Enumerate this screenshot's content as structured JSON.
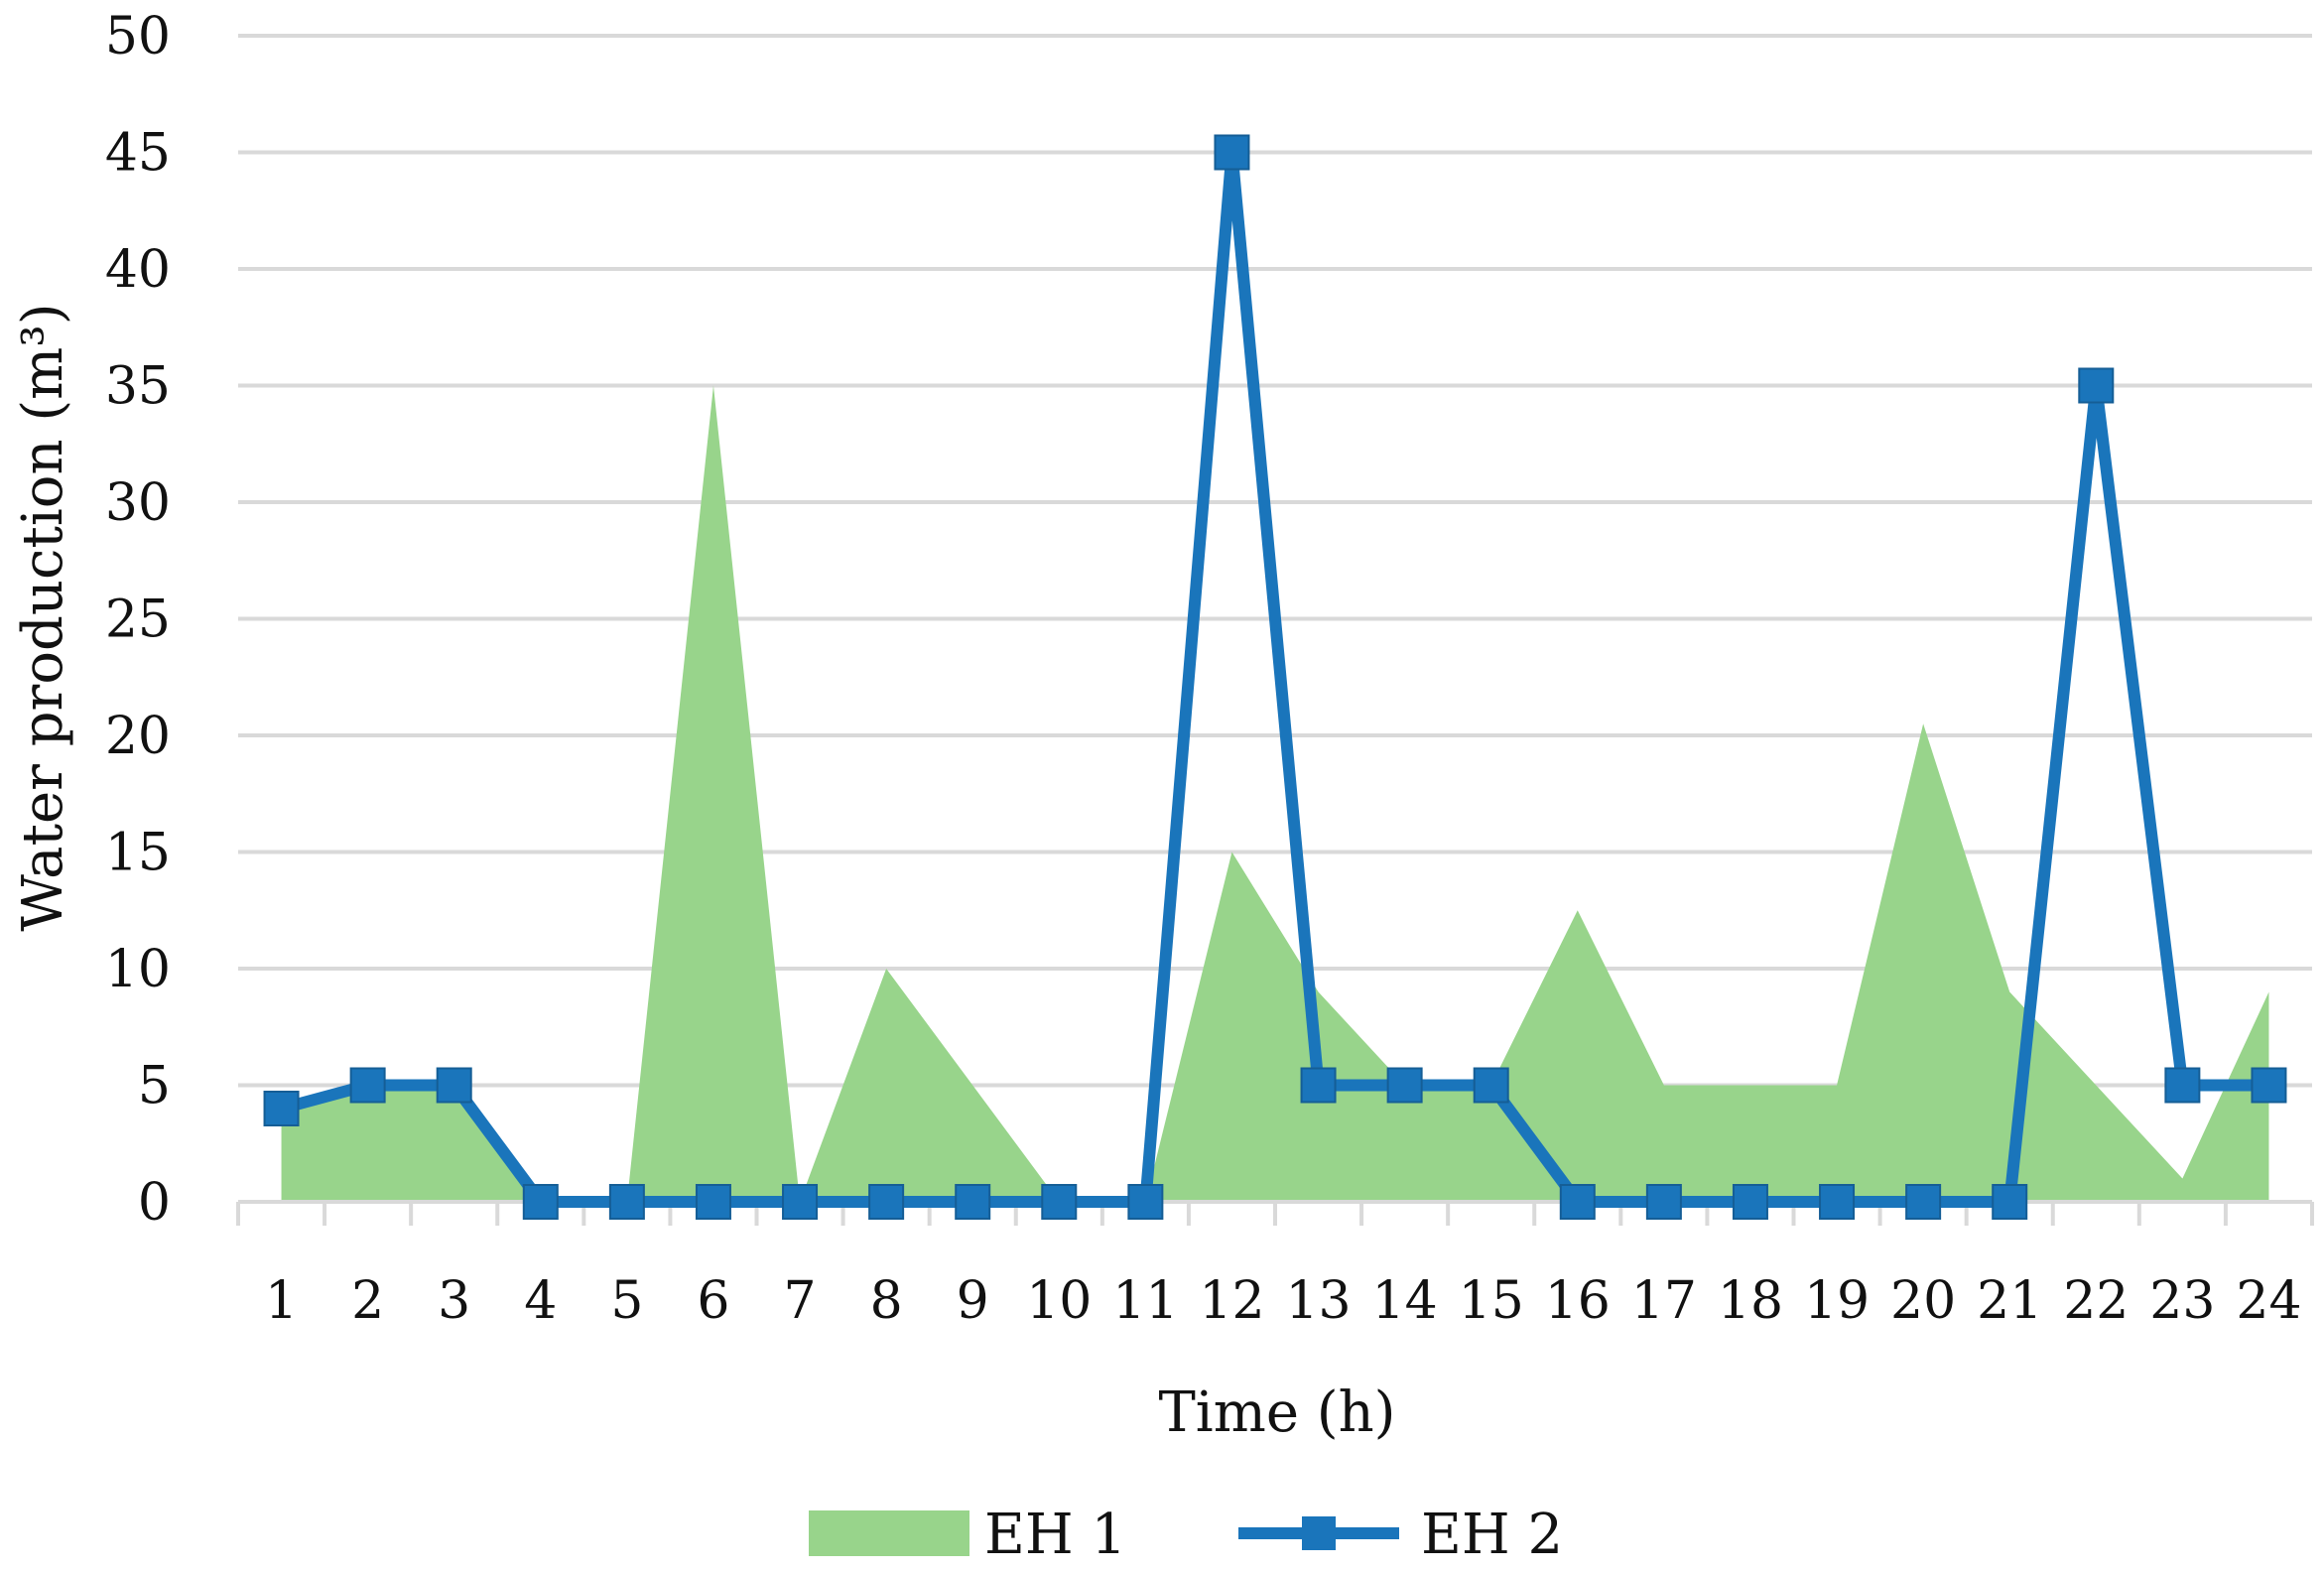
{
  "chart_data": {
    "type": "area",
    "xlabel": "Time (h)",
    "ylabel": "Water production (m³)",
    "ylim": [
      0,
      50
    ],
    "yticks": [
      "0",
      "5",
      "10",
      "15",
      "20",
      "25",
      "30",
      "35",
      "40",
      "45",
      "50"
    ],
    "grid": true,
    "legend_position": "bottom",
    "categories": [
      "1",
      "2",
      "3",
      "4",
      "5",
      "6",
      "7",
      "8",
      "9",
      "10",
      "11",
      "12",
      "13",
      "14",
      "15",
      "16",
      "17",
      "18",
      "19",
      "20",
      "21",
      "22",
      "23",
      "24"
    ],
    "series": [
      {
        "name": "EH 1",
        "kind": "area",
        "color": "#98d48b",
        "values": [
          4,
          5,
          5,
          0,
          0,
          35,
          0,
          10,
          5,
          0,
          0,
          15,
          9,
          5,
          5,
          12.5,
          5,
          5,
          5,
          20.5,
          9,
          5,
          1,
          9
        ]
      },
      {
        "name": "EH 2",
        "kind": "line",
        "marker": "square",
        "color": "#1a75bb",
        "values": [
          4,
          5,
          5,
          0,
          0,
          0,
          0,
          0,
          0,
          0,
          0,
          45,
          5,
          5,
          5,
          0,
          0,
          0,
          0,
          0,
          0,
          35,
          5,
          5
        ]
      }
    ]
  }
}
